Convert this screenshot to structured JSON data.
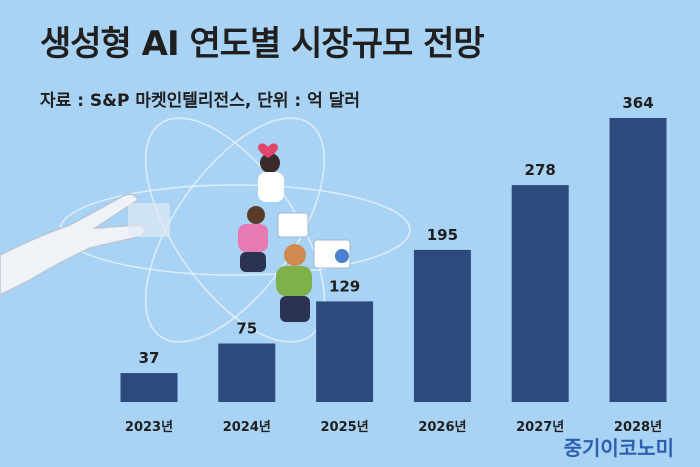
{
  "chart_data": {
    "type": "bar",
    "title": "생성형 AI 연도별 시장규모 전망",
    "subtitle": "자료 : S&P 마켓인텔리전스, 단위 : 억 달러",
    "categories": [
      "2023년",
      "2024년",
      "2025년",
      "2026년",
      "2027년",
      "2028년"
    ],
    "values": [
      37,
      75,
      129,
      195,
      278,
      364
    ],
    "ylim": [
      0,
      364
    ],
    "grid": false,
    "bar_color": "#2c4a7c"
  },
  "brand": "중기이코노미",
  "colors": {
    "background": "#a9d3f5",
    "bar": "#2c4a7c",
    "brand": "#2d5fb0"
  },
  "illustration": {
    "icons": [
      "robot-hand-icon",
      "atom-orbit-icon",
      "person-icon",
      "chart-card-icon",
      "heart-icon"
    ]
  }
}
